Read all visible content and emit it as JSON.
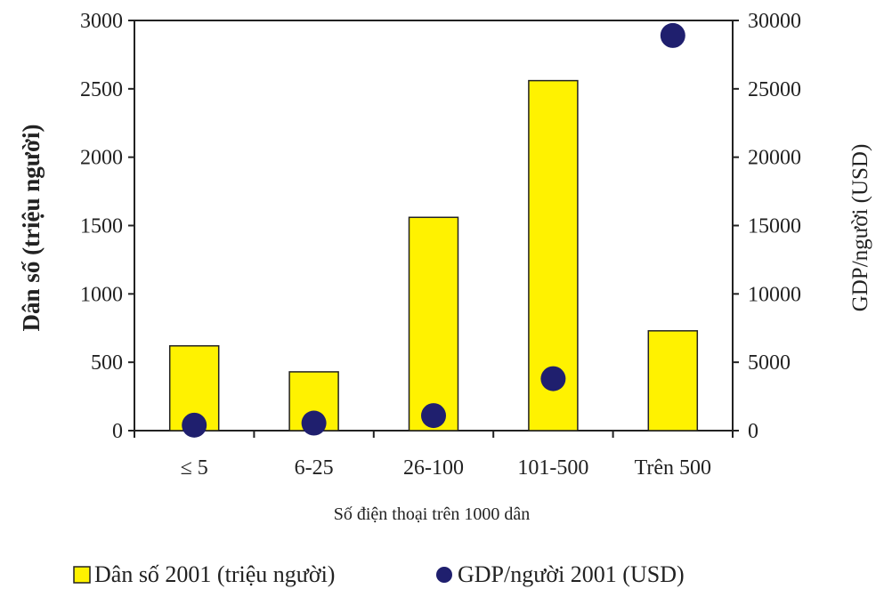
{
  "chart_data": {
    "type": "bar",
    "categories": [
      "≤ 5",
      "6-25",
      "26-100",
      "101-500",
      "Trên 500"
    ],
    "xlabel": "Số điện thoại trên 1000 dân",
    "y_left": {
      "label": "Dân số (triệu người)",
      "range": [
        0,
        3000
      ],
      "ticks": [
        0,
        500,
        1000,
        1500,
        2000,
        2500,
        3000
      ]
    },
    "y_right": {
      "label": "GDP/người (USD)",
      "range": [
        0,
        30000
      ],
      "ticks": [
        0,
        5000,
        10000,
        15000,
        20000,
        25000,
        30000
      ]
    },
    "series": [
      {
        "name": "Dân số 2001 (triệu người)",
        "kind": "bar",
        "axis": "left",
        "color": "#fff200",
        "values": [
          620,
          430,
          1560,
          2560,
          730
        ]
      },
      {
        "name": "GDP/người 2001 (USD)",
        "kind": "scatter",
        "axis": "right",
        "color": "#1f1f6e",
        "values": [
          400,
          550,
          1100,
          3800,
          28900
        ]
      }
    ],
    "grid": false,
    "legend_position": "bottom"
  }
}
